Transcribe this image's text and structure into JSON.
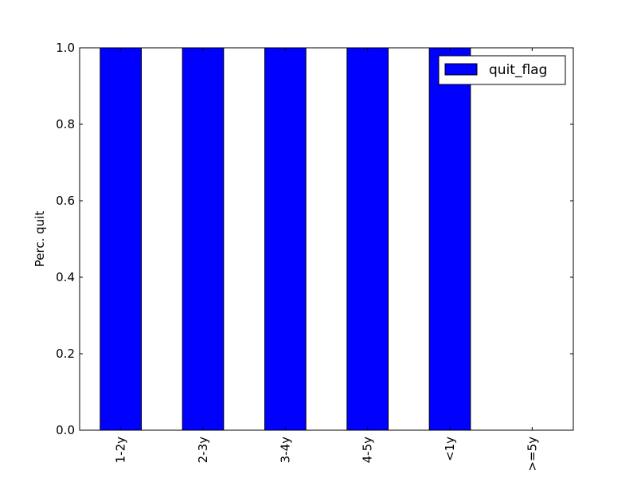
{
  "chart_data": {
    "type": "bar",
    "categories": [
      "1-2y",
      "2-3y",
      "3-4y",
      "4-5y",
      "<1y",
      ">=5y"
    ],
    "series": [
      {
        "name": "quit_flag",
        "values": [
          1.0,
          1.0,
          1.0,
          1.0,
          1.0,
          0.0
        ]
      }
    ],
    "title": "",
    "xlabel": "",
    "ylabel": "Perc. quit",
    "ylim": [
      0,
      1.0
    ],
    "yticks": [
      0.0,
      0.2,
      0.4,
      0.6,
      0.8,
      1.0
    ],
    "ytick_labels": [
      "0.0",
      "0.2",
      "0.4",
      "0.6",
      "0.8",
      "1.0"
    ],
    "grid": false,
    "legend": "top-right",
    "colors": {
      "bar": "#0000ff",
      "edge": "#000000"
    }
  }
}
